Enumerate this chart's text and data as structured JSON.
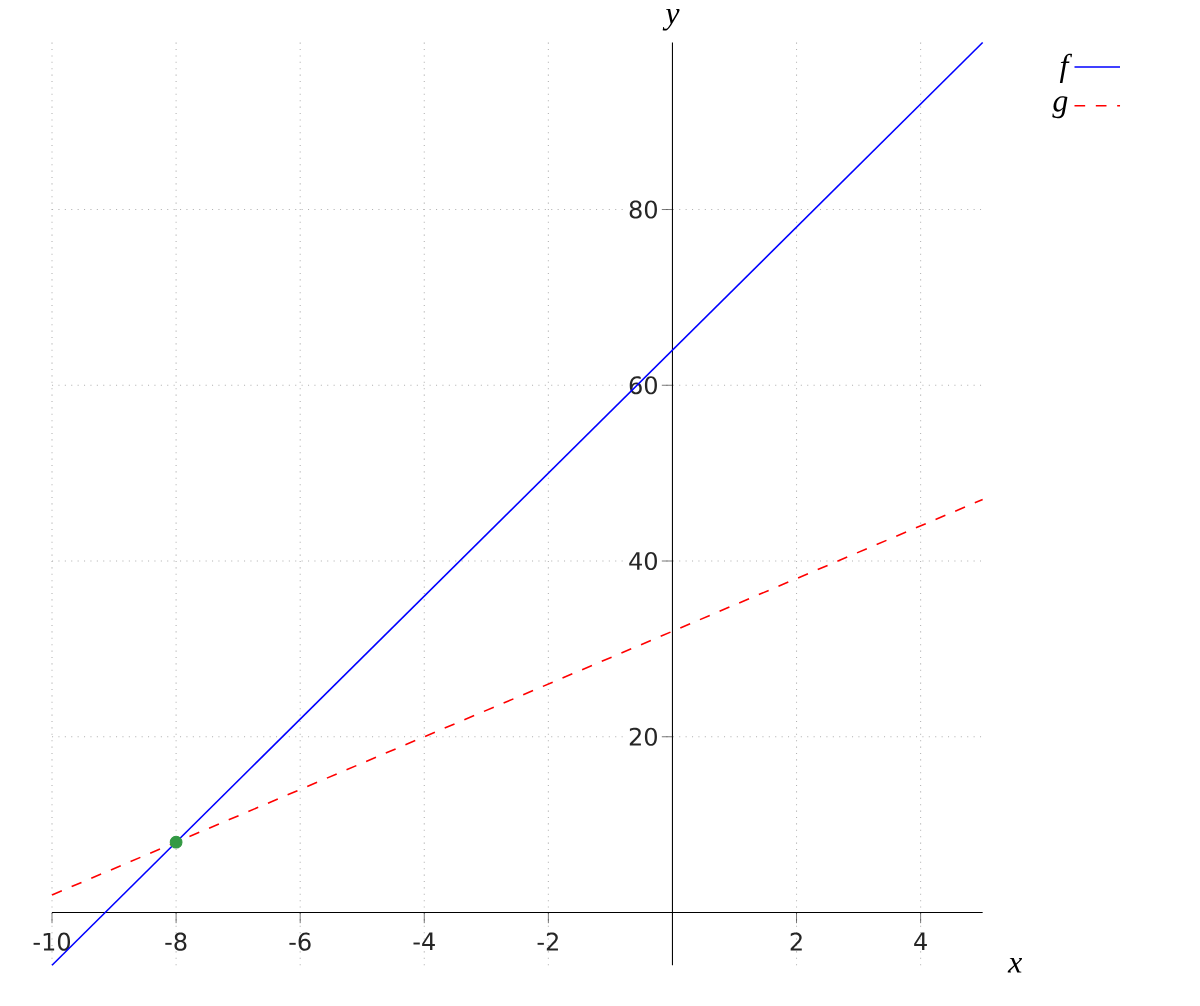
{
  "chart_data": {
    "type": "line",
    "xlabel": "x",
    "ylabel": "y",
    "xlim": [
      -10,
      5
    ],
    "ylim": [
      -6,
      99
    ],
    "xticks": [
      -10,
      -8,
      -6,
      -4,
      -2,
      2,
      4
    ],
    "yticks": [
      20,
      40,
      60,
      80
    ],
    "grid": true,
    "legend": "top right",
    "marker": "none",
    "series": [
      {
        "name": "f",
        "color": "#0000ff",
        "line_style": "solid",
        "x": [
          -10,
          5
        ],
        "values": [
          -6,
          99
        ]
      },
      {
        "name": "g",
        "color": "#ff0000",
        "line_style": "dashed",
        "x": [
          -10,
          5
        ],
        "values": [
          2,
          47
        ]
      },
      {
        "type": "scatter",
        "color": "#339944",
        "marker": "circle",
        "x": [
          -8
        ],
        "values": [
          8
        ]
      }
    ]
  }
}
